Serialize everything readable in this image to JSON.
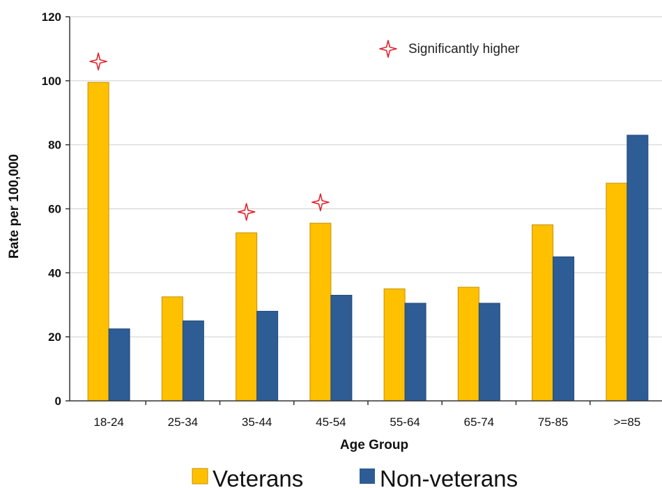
{
  "chart_data": {
    "type": "bar",
    "title": "",
    "xlabel": "Age Group",
    "ylabel": "Rate per 100,000",
    "ylim": [
      0,
      120
    ],
    "yticks": [
      "0",
      "20",
      "40",
      "60",
      "80",
      "100",
      "120"
    ],
    "categories": [
      "18-24",
      "25-34",
      "35-44",
      "45-54",
      "55-64",
      "65-74",
      "75-85",
      ">=85"
    ],
    "series": [
      {
        "name": "Veterans",
        "color": "#FFC000",
        "values": [
          99.5,
          32.5,
          52.5,
          55.5,
          35,
          35.5,
          55,
          68
        ]
      },
      {
        "name": "Non-veterans",
        "color": "#2E5C94",
        "values": [
          22.5,
          25,
          28,
          33,
          30.5,
          30.5,
          45,
          83
        ]
      }
    ],
    "significance_marker": {
      "label": "Significantly higher",
      "color": "#E0242B",
      "categories": [
        "18-24",
        "35-44",
        "45-54"
      ]
    },
    "grid": true,
    "legend_position": "bottom"
  }
}
